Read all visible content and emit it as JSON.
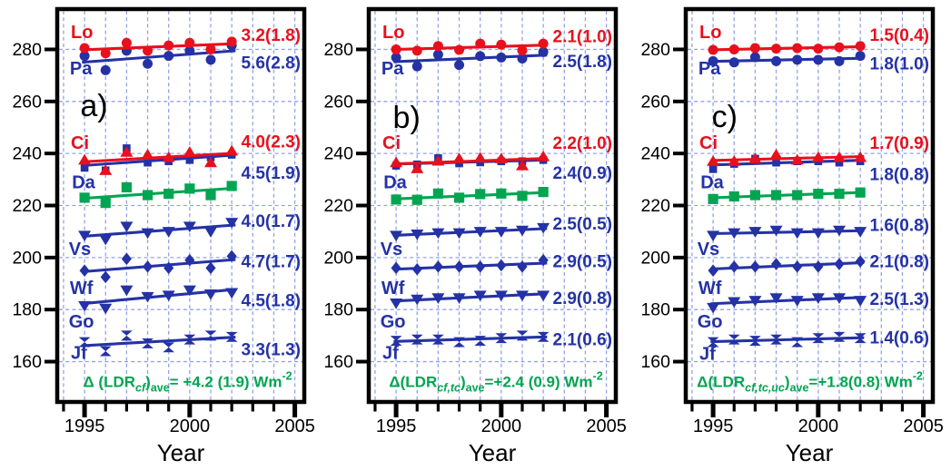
{
  "figure": {
    "xlabel": "Year",
    "x_tick_labels": [
      "1995",
      "2000",
      "2005"
    ],
    "x_tick_years": [
      1995,
      2000,
      2005
    ],
    "y_tick_labels": [
      "160",
      "180",
      "200",
      "220",
      "240",
      "260",
      "280"
    ],
    "colors": {
      "red": "#e8101c",
      "blue": "#2432a6",
      "green": "#00a551",
      "grid": "#93a3e8",
      "axis": "#000000",
      "background": "#ffffff"
    }
  },
  "chart_data": [
    {
      "type": "line",
      "panel_label": "a)",
      "panel_label_pos": [
        1995.45,
        258.5
      ],
      "xlabel": "Year",
      "x": [
        1995,
        1996,
        1997,
        1998,
        1999,
        2000,
        2001,
        2002
      ],
      "xlim": [
        1993.7,
        2005.45
      ],
      "ylim": [
        144.5,
        295.5
      ],
      "yticks": [
        160,
        180,
        200,
        220,
        240,
        260,
        280
      ],
      "xticks_major": [
        1995,
        2000,
        2005
      ],
      "xticks_minor": [
        1994,
        1995,
        1996,
        1997,
        1998,
        1999,
        2000,
        2001,
        2002,
        2003,
        2004,
        2005
      ],
      "grid": {
        "style": "dashed",
        "color": "#93a3e8"
      },
      "series": [
        {
          "name": "Lo",
          "color": "#e8101c",
          "marker": "circle",
          "size": 5.5,
          "name_pos": [
            1994.35,
            286.8
          ],
          "values": [
            280.5,
            278.5,
            282.5,
            279.5,
            281.5,
            282.5,
            280,
            283
          ],
          "trend_label": "3.2(1.8)",
          "trend_label_y": 285.5
        },
        {
          "name": "Pa",
          "color": "#2432a6",
          "marker": "circle",
          "size": 5.5,
          "name_pos": [
            1994.3,
            272.8
          ],
          "values": [
            277.5,
            272,
            279.5,
            274.5,
            277.5,
            279.5,
            276,
            281.5
          ],
          "trend_label": "5.6(2.8)",
          "trend_label_y": 275
        },
        {
          "name": "Ci",
          "color": "#e8101c",
          "marker": "triangle-up",
          "size": 7,
          "name_pos": [
            1994.35,
            244.2
          ],
          "values": [
            237.5,
            233.5,
            240.5,
            239.5,
            238.5,
            240.5,
            236.5,
            241
          ],
          "trend_label": "4.0(2.3)",
          "trend_label_y": 244.5
        },
        {
          "name": "Da",
          "color": "#2432a6",
          "marker": "square",
          "size": 4.3,
          "name_pos": [
            1994.4,
            229
          ],
          "values": [
            234.5,
            233.5,
            242,
            236.5,
            237,
            237.5,
            238.5,
            239.5
          ],
          "trend_label": "4.5(1.9)",
          "trend_label_y": 232.5
        },
        {
          "name": "",
          "color": "#00a551",
          "marker": "square",
          "size": 5.6,
          "name_pos": null,
          "values": [
            223,
            221,
            227,
            224,
            224.5,
            226.5,
            224,
            227.5
          ],
          "trend_label": "",
          "trend_label_y": null
        },
        {
          "name": "Vs",
          "color": "#2432a6",
          "marker": "triangle-down",
          "size": 7,
          "name_pos": [
            1994.25,
            203.5
          ],
          "values": [
            208.5,
            207,
            212,
            209.5,
            210,
            212,
            210,
            213.5
          ],
          "trend_label": "4.0(1.7)",
          "trend_label_y": 214
        },
        {
          "name": "Wf",
          "color": "#2432a6",
          "marker": "diamond",
          "size": 6.8,
          "name_pos": [
            1994.3,
            188.5
          ],
          "values": [
            195,
            192.5,
            199.5,
            196.5,
            196,
            199,
            196,
            200.5
          ],
          "trend_label": "4.7(1.7)",
          "trend_label_y": 198.5
        },
        {
          "name": "Go",
          "color": "#2432a6",
          "marker": "triangle-down",
          "size": 7,
          "name_pos": [
            1994.25,
            175.5
          ],
          "values": [
            181.5,
            180.5,
            187.5,
            185,
            185.5,
            187.5,
            186,
            186.5
          ],
          "trend_label": "4.5(1.8)",
          "trend_label_y": 183.5
        },
        {
          "name": "Jf",
          "color": "#2432a6",
          "marker": "bowtie",
          "size": 6.4,
          "name_pos": [
            1994.35,
            163.5
          ],
          "values": [
            167.5,
            164,
            170,
            167,
            165.5,
            168.5,
            170,
            169.5
          ],
          "trend_label": "3.3(1.3)",
          "trend_label_y": 164.8
        }
      ],
      "annotation": {
        "color": "#00a551",
        "pos": [
          1999.9,
          152.3
        ],
        "plain": "Δ (LDRcf)ave= +4.2 (1.9) Wm-2",
        "parts": [
          {
            "t": "Δ (",
            "k": "b"
          },
          {
            "t": "LDR",
            "k": "bi"
          },
          {
            "t": "cf",
            "k": "sub-bi"
          },
          {
            "t": ")",
            "k": "b"
          },
          {
            "t": "ave",
            "k": "sub-b"
          },
          {
            "t": "= +4.2 (1.9) Wm",
            "k": "b"
          },
          {
            "t": "-2",
            "k": "sup-b"
          }
        ]
      }
    },
    {
      "type": "line",
      "panel_label": "b)",
      "panel_label_pos": [
        1995.5,
        254
      ],
      "xlabel": "Year",
      "x": [
        1995,
        1996,
        1997,
        1998,
        1999,
        2000,
        2001,
        2002
      ],
      "xlim": [
        1993.7,
        2005.45
      ],
      "ylim": [
        144.5,
        295.5
      ],
      "yticks": [
        160,
        180,
        200,
        220,
        240,
        260,
        280
      ],
      "xticks_major": [
        1995,
        2000,
        2005
      ],
      "xticks_minor": [
        1994,
        1995,
        1996,
        1997,
        1998,
        1999,
        2000,
        2001,
        2002,
        2003,
        2004,
        2005
      ],
      "grid": {
        "style": "dashed",
        "color": "#93a3e8"
      },
      "series": [
        {
          "name": "Lo",
          "color": "#e8101c",
          "marker": "circle",
          "size": 5.5,
          "name_pos": [
            1994.35,
            286.8
          ],
          "values": [
            280,
            279.5,
            281.3,
            279.8,
            282.2,
            281.8,
            279.6,
            282.2
          ],
          "trend_label": "2.1(1.0)",
          "trend_label_y": 285
        },
        {
          "name": "Pa",
          "color": "#2432a6",
          "marker": "circle",
          "size": 5.5,
          "name_pos": [
            1994.3,
            272.8
          ],
          "values": [
            276.9,
            273.5,
            278,
            274,
            277.4,
            276.9,
            276.5,
            279
          ],
          "trend_label": "2.5(1.8)",
          "trend_label_y": 275.5
        },
        {
          "name": "Ci",
          "color": "#e8101c",
          "marker": "triangle-up",
          "size": 7,
          "name_pos": [
            1994.35,
            244.2
          ],
          "values": [
            236.5,
            234.2,
            237.1,
            238,
            238.3,
            238,
            235.3,
            238.8
          ],
          "trend_label": "2.2(1.0)",
          "trend_label_y": 244
        },
        {
          "name": "Da",
          "color": "#2432a6",
          "marker": "square",
          "size": 4.3,
          "name_pos": [
            1994.4,
            229
          ],
          "values": [
            235.3,
            235.8,
            238.2,
            236.2,
            236.6,
            237,
            237,
            237.5
          ],
          "trend_label": "2.4(0.9)",
          "trend_label_y": 232.5
        },
        {
          "name": "",
          "color": "#00a551",
          "marker": "square",
          "size": 5.6,
          "name_pos": null,
          "values": [
            222.3,
            222.2,
            224.6,
            223,
            224.4,
            224.6,
            223.7,
            225.2
          ],
          "trend_label": "",
          "trend_label_y": null
        },
        {
          "name": "Vs",
          "color": "#2432a6",
          "marker": "triangle-down",
          "size": 7,
          "name_pos": [
            1994.25,
            203.5
          ],
          "values": [
            208.5,
            209,
            209.5,
            209.5,
            210,
            210,
            210.5,
            211.5
          ],
          "trend_label": "2.5(0.5)",
          "trend_label_y": 213
        },
        {
          "name": "Wf",
          "color": "#2432a6",
          "marker": "diamond",
          "size": 6.8,
          "name_pos": [
            1994.3,
            188.5
          ],
          "values": [
            196,
            195.5,
            196.5,
            196.5,
            196.5,
            197,
            196.5,
            199
          ],
          "trend_label": "2.9(0.5)",
          "trend_label_y": 198.5
        },
        {
          "name": "Go",
          "color": "#2432a6",
          "marker": "triangle-down",
          "size": 7,
          "name_pos": [
            1994.25,
            175.5
          ],
          "values": [
            182.5,
            184,
            184.5,
            184.5,
            185.5,
            185.5,
            185.5,
            185.5
          ],
          "trend_label": "2.9(0.8)",
          "trend_label_y": 184.5
        },
        {
          "name": "Jf",
          "color": "#2432a6",
          "marker": "bowtie",
          "size": 6.4,
          "name_pos": [
            1994.35,
            163.5
          ],
          "values": [
            168,
            168.5,
            168.5,
            167.5,
            168,
            169,
            170,
            169.5
          ],
          "trend_label": "2.1(0.6)",
          "trend_label_y": 168.5
        }
      ],
      "annotation": {
        "color": "#00a551",
        "pos": [
          1999.75,
          152.3
        ],
        "plain": "Δ(LDRcf,tc)ave=+2.4 (0.9) Wm-2",
        "parts": [
          {
            "t": "Δ(",
            "k": "b"
          },
          {
            "t": "LDR",
            "k": "bi"
          },
          {
            "t": "cf,tc",
            "k": "sub-bi"
          },
          {
            "t": ")",
            "k": "b"
          },
          {
            "t": "ave",
            "k": "sub-b"
          },
          {
            "t": "=+2.4 (0.9) Wm",
            "k": "b"
          },
          {
            "t": "-2",
            "k": "sup-b"
          }
        ]
      }
    },
    {
      "type": "line",
      "panel_label": "c)",
      "panel_label_pos": [
        1995.55,
        254.3
      ],
      "xlabel": "Year",
      "x": [
        1995,
        1996,
        1997,
        1998,
        1999,
        2000,
        2001,
        2002
      ],
      "xlim": [
        1993.7,
        2005.45
      ],
      "ylim": [
        144.5,
        295.5
      ],
      "yticks": [
        160,
        180,
        200,
        220,
        240,
        260,
        280
      ],
      "xticks_major": [
        1995,
        2000,
        2005
      ],
      "xticks_minor": [
        1994,
        1995,
        1996,
        1997,
        1998,
        1999,
        2000,
        2001,
        2002,
        2003,
        2004,
        2005
      ],
      "grid": {
        "style": "dashed",
        "color": "#93a3e8"
      },
      "series": [
        {
          "name": "Lo",
          "color": "#e8101c",
          "marker": "circle",
          "size": 5.5,
          "name_pos": [
            1994.35,
            286.8
          ],
          "values": [
            279.8,
            280,
            280.5,
            280.3,
            280.5,
            280.3,
            280.8,
            281.3
          ],
          "trend_label": "1.5(0.4)",
          "trend_label_y": 285.5
        },
        {
          "name": "Pa",
          "color": "#2432a6",
          "marker": "circle",
          "size": 5.5,
          "name_pos": [
            1994.3,
            272.8
          ],
          "values": [
            275.5,
            275,
            277,
            275.5,
            276,
            276,
            275.5,
            277.5
          ],
          "trend_label": "1.8(1.0)",
          "trend_label_y": 274.5
        },
        {
          "name": "Ci",
          "color": "#e8101c",
          "marker": "triangle-up",
          "size": 7,
          "name_pos": [
            1994.35,
            244.2
          ],
          "values": [
            237,
            237,
            238,
            239.5,
            237.5,
            238.5,
            238.5,
            238.5
          ],
          "trend_label": "1.7(0.9)",
          "trend_label_y": 244
        },
        {
          "name": "Da",
          "color": "#2432a6",
          "marker": "square",
          "size": 4.3,
          "name_pos": [
            1994.4,
            229
          ],
          "values": [
            234,
            236,
            238,
            236.5,
            237,
            237,
            236.5,
            237
          ],
          "trend_label": "1.8(0.8)",
          "trend_label_y": 232
        },
        {
          "name": "",
          "color": "#00a551",
          "marker": "square",
          "size": 5.6,
          "name_pos": null,
          "values": [
            222.5,
            223.5,
            224,
            224,
            224,
            224.5,
            224.5,
            225
          ],
          "trend_label": "",
          "trend_label_y": null
        },
        {
          "name": "Vs",
          "color": "#2432a6",
          "marker": "triangle-down",
          "size": 7,
          "name_pos": [
            1994.25,
            203.5
          ],
          "values": [
            208.5,
            209.5,
            210,
            210.5,
            209.5,
            209.5,
            210.5,
            210
          ],
          "trend_label": "1.6(0.8)",
          "trend_label_y": 212.5
        },
        {
          "name": "Wf",
          "color": "#2432a6",
          "marker": "diamond",
          "size": 6.8,
          "name_pos": [
            1994.3,
            188.5
          ],
          "values": [
            195,
            196.5,
            196.5,
            197.5,
            196.5,
            196.5,
            197.5,
            198.5
          ],
          "trend_label": "2.1(0.8)",
          "trend_label_y": 198.5
        },
        {
          "name": "Go",
          "color": "#2432a6",
          "marker": "triangle-down",
          "size": 7,
          "name_pos": [
            1994.25,
            175.5
          ],
          "values": [
            180.8,
            183,
            183.5,
            184.5,
            183.5,
            184.5,
            184.5,
            183.5
          ],
          "trend_label": "2.5(1.3)",
          "trend_label_y": 184
        },
        {
          "name": "Jf",
          "color": "#2432a6",
          "marker": "bowtie",
          "size": 6.4,
          "name_pos": [
            1994.35,
            163.2
          ],
          "values": [
            167.5,
            168.5,
            168,
            168.5,
            167.5,
            169,
            169.5,
            169
          ],
          "trend_label": "1.4(0.6)",
          "trend_label_y": 169.3
        }
      ],
      "annotation": {
        "color": "#00a551",
        "pos": [
          1999.6,
          152.3
        ],
        "plain": "Δ(LDRcf,tc,uc)ave=+1.8(0.8) Wm-2",
        "parts": [
          {
            "t": "Δ(",
            "k": "b"
          },
          {
            "t": "LDR",
            "k": "bi"
          },
          {
            "t": "cf,tc,uc",
            "k": "sub-bi"
          },
          {
            "t": ")",
            "k": "b"
          },
          {
            "t": "ave",
            "k": "sub-b"
          },
          {
            "t": "=+1.8(0.8) Wm",
            "k": "b"
          },
          {
            "t": "-2",
            "k": "sup-b"
          }
        ]
      }
    }
  ]
}
